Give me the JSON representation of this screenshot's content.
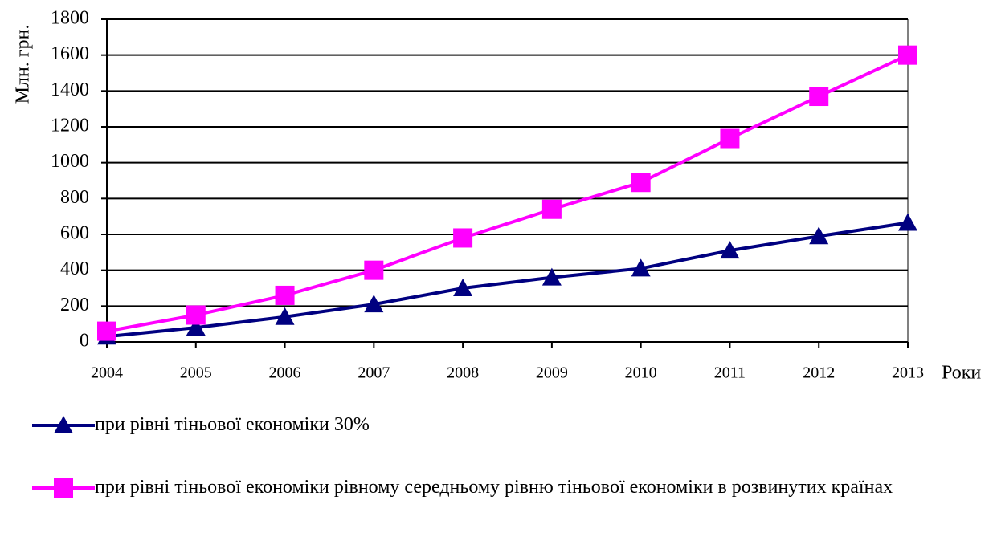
{
  "chart_data": {
    "type": "line",
    "y_label": "Млн. грн.",
    "x_label": "Роки",
    "categories": [
      "2004",
      "2005",
      "2006",
      "2007",
      "2008",
      "2009",
      "2010",
      "2011",
      "2012",
      "2013"
    ],
    "series": [
      {
        "name": "при рівні тіньової економіки 30%",
        "color": "#000080",
        "marker": "triangle",
        "values": [
          30,
          80,
          140,
          210,
          300,
          360,
          410,
          510,
          590,
          665
        ]
      },
      {
        "name": "при рівні тіньової економіки рівному середньому рівню тіньової економіки в розвинутих країнах",
        "color": "#ff00ff",
        "marker": "square",
        "values": [
          60,
          150,
          260,
          400,
          580,
          740,
          890,
          1135,
          1370,
          1600
        ]
      }
    ],
    "ylim": [
      0,
      1800
    ],
    "yticks": [
      0,
      200,
      400,
      600,
      800,
      1000,
      1200,
      1400,
      1600,
      1800
    ],
    "grid": true
  }
}
